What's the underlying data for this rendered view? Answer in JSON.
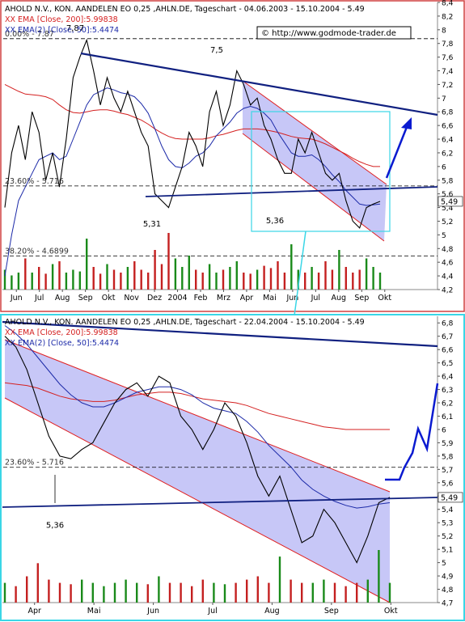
{
  "colors": {
    "frame_top": "#d04040",
    "frame_bottom": "#3ad6e6",
    "price": "#000000",
    "ema200": "#d42020",
    "ema50": "#1c2aa8",
    "trendline": "#102080",
    "channel_fill": "#b4b4f4",
    "channel_edge": "#e02020",
    "forecast": "#0a1ad0",
    "fib": "#000000",
    "vol_up": "#1a8a1a",
    "vol_down": "#c42020",
    "highlight_box": "#3ad6e6"
  },
  "chart_data": [
    {
      "type": "line",
      "panel": "top",
      "title": "AHOLD N.V., KON. AANDELEN EO 0,25 ,AHLN.DE, Tageschart - 04.06.2003 - 15.10.2004 - 5.49",
      "watermark": "© http://www.godmode-trader.de",
      "legend": [
        "XX EMA [Close, 200]:5.99838",
        "XX EMA(2) [Close, 50]:5.4474"
      ],
      "x_labels": [
        "Jun",
        "Jul",
        "Aug",
        "Sep",
        "Okt",
        "Nov",
        "Dez",
        "2004",
        "Feb",
        "Mrz",
        "Apr",
        "Mai",
        "Jun",
        "Jul",
        "Aug",
        "Sep",
        "Okt"
      ],
      "y_ticks": [
        "8,4",
        "8,2",
        "8",
        "7,8",
        "7,6",
        "7,4",
        "7,2",
        "7",
        "6,8",
        "6,6",
        "6,4",
        "6,2",
        "6",
        "5,8",
        "5,6",
        "5,4",
        "5,2",
        "5",
        "4,8",
        "4,6",
        "4,4",
        "4,2"
      ],
      "ylim": [
        4.2,
        8.4
      ],
      "last_value_label": "5,49",
      "fib_levels": [
        {
          "label": "0.00% - 7.87",
          "value": 7.87
        },
        {
          "label": "23.60% - 5.716",
          "value": 5.716
        },
        {
          "label": "38.20% - 4.6899",
          "value": 4.6899
        }
      ],
      "annotations": [
        {
          "text": "7,87",
          "value": 7.87
        },
        {
          "text": "7,5",
          "value": 7.5
        },
        {
          "text": "5,31",
          "value": 5.31
        },
        {
          "text": "5,36",
          "value": 5.36
        }
      ],
      "close": [
        5.4,
        6.2,
        6.6,
        6.1,
        6.8,
        6.5,
        5.8,
        6.2,
        5.7,
        6.4,
        7.3,
        7.6,
        7.85,
        7.4,
        6.9,
        7.3,
        7.0,
        6.8,
        7.1,
        6.8,
        6.5,
        6.3,
        5.6,
        5.5,
        5.4,
        5.7,
        6.0,
        6.5,
        6.3,
        6.0,
        6.8,
        7.1,
        6.6,
        6.9,
        7.4,
        7.2,
        6.9,
        7.0,
        6.6,
        6.4,
        6.1,
        5.9,
        5.9,
        6.4,
        6.2,
        6.5,
        6.2,
        5.9,
        5.8,
        5.9,
        5.5,
        5.2,
        5.1,
        5.4,
        5.45,
        5.49
      ],
      "ema200": [
        7.2,
        7.15,
        7.1,
        7.06,
        7.05,
        7.04,
        7.02,
        6.98,
        6.9,
        6.83,
        6.79,
        6.78,
        6.8,
        6.82,
        6.83,
        6.83,
        6.81,
        6.78,
        6.76,
        6.72,
        6.68,
        6.62,
        6.55,
        6.49,
        6.44,
        6.41,
        6.4,
        6.4,
        6.4,
        6.4,
        6.42,
        6.45,
        6.47,
        6.5,
        6.53,
        6.55,
        6.55,
        6.55,
        6.54,
        6.52,
        6.5,
        6.47,
        6.44,
        6.42,
        6.41,
        6.4,
        6.37,
        6.33,
        6.28,
        6.23,
        6.18,
        6.12,
        6.07,
        6.03,
        6.0,
        6.0
      ],
      "ema50": [
        4.4,
        5.0,
        5.5,
        5.7,
        5.9,
        6.1,
        6.15,
        6.2,
        6.1,
        6.15,
        6.4,
        6.65,
        6.9,
        7.05,
        7.1,
        7.15,
        7.12,
        7.08,
        7.06,
        7.02,
        6.92,
        6.78,
        6.55,
        6.3,
        6.1,
        6.0,
        5.98,
        6.05,
        6.15,
        6.2,
        6.3,
        6.45,
        6.55,
        6.65,
        6.78,
        6.85,
        6.88,
        6.85,
        6.78,
        6.68,
        6.5,
        6.35,
        6.2,
        6.15,
        6.15,
        6.17,
        6.1,
        6.0,
        5.88,
        5.78,
        5.65,
        5.55,
        5.45,
        5.43,
        5.44,
        5.45
      ],
      "volume": [
        0.35,
        0.25,
        0.3,
        0.55,
        0.3,
        0.4,
        0.28,
        0.45,
        0.5,
        0.3,
        0.35,
        0.32,
        0.9,
        0.4,
        0.28,
        0.45,
        0.35,
        0.3,
        0.4,
        0.5,
        0.35,
        0.3,
        0.7,
        0.45,
        1.0,
        0.55,
        0.4,
        0.6,
        0.35,
        0.3,
        0.45,
        0.3,
        0.35,
        0.4,
        0.5,
        0.3,
        0.28,
        0.35,
        0.42,
        0.38,
        0.5,
        0.3,
        0.8,
        0.35,
        0.3,
        0.4,
        0.3,
        0.5,
        0.35,
        0.7,
        0.4,
        0.3,
        0.35,
        0.55,
        0.4,
        0.3
      ]
    },
    {
      "type": "line",
      "panel": "bottom",
      "title": "AHOLD N.V., KON. AANDELEN EO 0,25 ,AHLN.DE, Tageschart - 22.04.2004 - 15.10.2004 - 5.49",
      "legend": [
        "XX EMA [Close, 200]:5.99838",
        "XX EMA(2) [Close, 50]:5.4474"
      ],
      "x_labels": [
        "Apr",
        "Mai",
        "Jun",
        "Jul",
        "Aug",
        "Sep",
        "Okt"
      ],
      "y_ticks": [
        "6,8",
        "6,7",
        "6,6",
        "6,5",
        "6,4",
        "6,3",
        "6,2",
        "6,1",
        "6",
        "5,9",
        "5,8",
        "5,7",
        "5,6",
        "5,5",
        "5,4",
        "5,3",
        "5,2",
        "5,1",
        "5",
        "4,9",
        "4,8",
        "4,7"
      ],
      "ylim": [
        4.7,
        6.85
      ],
      "last_value_label": "5,49",
      "fib_levels": [
        {
          "label": "23.60% - 5.716",
          "value": 5.716
        }
      ],
      "annotations": [
        {
          "text": "5,36",
          "value": 5.36
        }
      ],
      "close": [
        6.7,
        6.62,
        6.45,
        6.2,
        5.95,
        5.8,
        5.78,
        5.85,
        5.9,
        6.05,
        6.2,
        6.3,
        6.35,
        6.25,
        6.4,
        6.35,
        6.1,
        6.0,
        5.85,
        6.0,
        6.2,
        6.1,
        5.9,
        5.65,
        5.5,
        5.65,
        5.4,
        5.15,
        5.2,
        5.4,
        5.3,
        5.15,
        5.0,
        5.2,
        5.45,
        5.49
      ],
      "ema200": [
        6.35,
        6.34,
        6.33,
        6.31,
        6.28,
        6.25,
        6.23,
        6.22,
        6.21,
        6.21,
        6.22,
        6.24,
        6.26,
        6.27,
        6.28,
        6.28,
        6.27,
        6.25,
        6.23,
        6.22,
        6.21,
        6.2,
        6.18,
        6.15,
        6.12,
        6.1,
        6.08,
        6.06,
        6.04,
        6.02,
        6.01,
        6.0,
        6.0,
        6.0,
        6.0,
        6.0
      ],
      "ema50": [
        6.78,
        6.72,
        6.64,
        6.54,
        6.44,
        6.34,
        6.26,
        6.2,
        6.17,
        6.17,
        6.2,
        6.24,
        6.28,
        6.3,
        6.32,
        6.32,
        6.3,
        6.26,
        6.2,
        6.16,
        6.14,
        6.12,
        6.06,
        5.98,
        5.88,
        5.8,
        5.72,
        5.62,
        5.55,
        5.5,
        5.46,
        5.43,
        5.41,
        5.42,
        5.44,
        5.45
      ],
      "volume": [
        0.3,
        0.25,
        0.4,
        0.6,
        0.35,
        0.3,
        0.28,
        0.35,
        0.3,
        0.25,
        0.3,
        0.35,
        0.3,
        0.28,
        0.4,
        0.3,
        0.3,
        0.25,
        0.35,
        0.3,
        0.28,
        0.3,
        0.35,
        0.4,
        0.3,
        0.7,
        0.35,
        0.3,
        0.3,
        0.35,
        0.3,
        0.25,
        0.3,
        0.35,
        0.8,
        0.3
      ]
    }
  ]
}
